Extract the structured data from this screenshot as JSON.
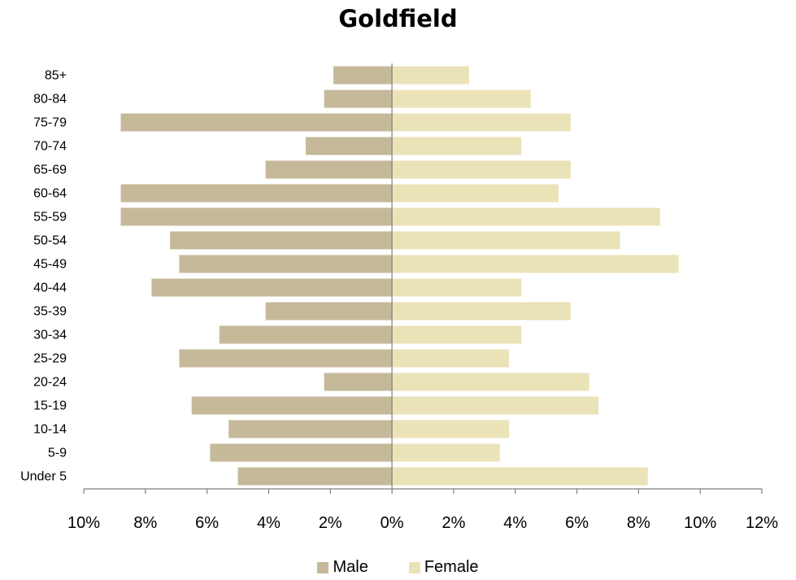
{
  "chart_data": {
    "type": "bar",
    "orientation": "horizontal",
    "title": "Goldfield",
    "categories": [
      "Under 5",
      "5-9",
      "10-14",
      "15-19",
      "20-24",
      "25-29",
      "30-34",
      "35-39",
      "40-44",
      "45-49",
      "50-54",
      "55-59",
      "60-64",
      "65-69",
      "70-74",
      "75-79",
      "80-84",
      "85+"
    ],
    "series": [
      {
        "name": "Male",
        "color": "#c6b99a",
        "values": [
          5.0,
          5.9,
          5.3,
          6.5,
          2.2,
          6.9,
          5.6,
          4.1,
          7.8,
          6.9,
          7.2,
          8.8,
          8.8,
          4.1,
          2.8,
          8.8,
          2.2,
          1.9
        ]
      },
      {
        "name": "Female",
        "color": "#ebe3b8",
        "values": [
          8.3,
          3.5,
          3.8,
          6.7,
          6.4,
          3.8,
          4.2,
          5.8,
          4.2,
          9.3,
          7.4,
          8.7,
          5.4,
          5.8,
          4.2,
          5.8,
          4.5,
          2.5
        ]
      }
    ],
    "xlim": [
      -10,
      12
    ],
    "xticks": [
      -10,
      -8,
      -6,
      -4,
      -2,
      0,
      2,
      4,
      6,
      8,
      10,
      12
    ],
    "xtick_labels": [
      "10%",
      "8%",
      "6%",
      "4%",
      "2%",
      "0%",
      "2%",
      "4%",
      "6%",
      "8%",
      "10%",
      "12%"
    ],
    "unit": "%",
    "grid": false,
    "legend_position": "bottom"
  }
}
